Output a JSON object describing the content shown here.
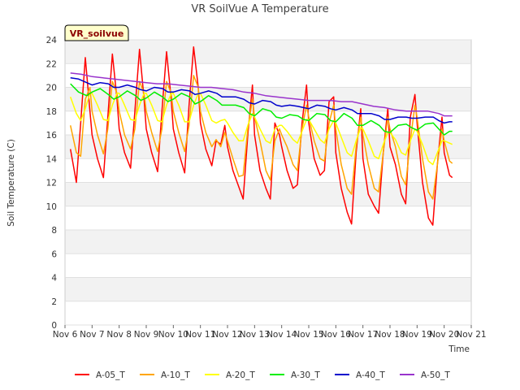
{
  "chart_data": {
    "type": "line",
    "title": "VR SoilVue A Temperature",
    "xlabel": "Time",
    "ylabel": "Soil Temperature (C)",
    "badge": "VR_soilvue",
    "xlim": [
      6,
      21
    ],
    "ylim": [
      0,
      24
    ],
    "x_ticks": [
      6,
      7,
      8,
      9,
      10,
      11,
      12,
      13,
      14,
      15,
      16,
      17,
      18,
      19,
      20,
      21
    ],
    "x_tick_labels": [
      "Nov 6",
      "Nov 7",
      "Nov 8",
      "Nov 9",
      "Nov 10",
      "Nov 11",
      "Nov 12",
      "Nov 13",
      "Nov 14",
      "Nov 15",
      "Nov 16",
      "Nov 17",
      "Nov 18",
      "Nov 19",
      "Nov 20",
      "Nov 21"
    ],
    "y_ticks": [
      0,
      2,
      4,
      6,
      8,
      10,
      12,
      14,
      16,
      18,
      20,
      22,
      24
    ],
    "y_tick_labels": [
      "0",
      "2",
      "4",
      "6",
      "8",
      "10",
      "12",
      "14",
      "16",
      "18",
      "20",
      "22",
      "24"
    ],
    "legend_position": "bottom-center",
    "grid": true,
    "series": [
      {
        "name": "A-05_T",
        "color": "#ff0000",
        "x": [
          6.2,
          6.42,
          6.58,
          6.75,
          6.92,
          7.0,
          7.2,
          7.42,
          7.58,
          7.75,
          7.92,
          8.0,
          8.2,
          8.42,
          8.58,
          8.75,
          8.92,
          9.0,
          9.2,
          9.42,
          9.58,
          9.75,
          9.92,
          10.0,
          10.2,
          10.42,
          10.58,
          10.75,
          10.92,
          11.0,
          11.2,
          11.42,
          11.58,
          11.75,
          11.9,
          12.0,
          12.2,
          12.42,
          12.58,
          12.75,
          12.92,
          13.0,
          13.2,
          13.42,
          13.58,
          13.75,
          13.92,
          14.0,
          14.2,
          14.42,
          14.58,
          14.75,
          14.92,
          15.0,
          15.2,
          15.42,
          15.58,
          15.75,
          15.92,
          16.0,
          16.2,
          16.42,
          16.58,
          16.75,
          16.92,
          17.0,
          17.2,
          17.42,
          17.58,
          17.75,
          17.92,
          18.0,
          18.2,
          18.42,
          18.58,
          18.75,
          18.92,
          19.0,
          19.2,
          19.42,
          19.58,
          19.75,
          19.92,
          20.0,
          20.2,
          20.3
        ],
        "values": [
          14.8,
          12.0,
          17.0,
          22.5,
          18.0,
          16.0,
          14.0,
          12.4,
          17.5,
          22.8,
          19.0,
          16.5,
          14.5,
          13.2,
          18.0,
          23.2,
          19.0,
          16.5,
          14.5,
          12.9,
          18.0,
          23.0,
          19.0,
          16.5,
          14.5,
          12.8,
          18.5,
          23.4,
          20.0,
          17.0,
          14.8,
          13.4,
          15.5,
          15.2,
          16.8,
          15.0,
          13.0,
          11.6,
          10.6,
          16.0,
          20.2,
          16.0,
          13.0,
          11.5,
          10.6,
          17.0,
          16.0,
          15.0,
          13.0,
          11.5,
          11.8,
          17.0,
          20.2,
          17.0,
          14.0,
          12.6,
          13.0,
          18.8,
          19.2,
          14.5,
          11.5,
          9.5,
          8.5,
          14.5,
          18.2,
          14.0,
          11.0,
          10.0,
          9.4,
          14.5,
          18.2,
          15.0,
          13.5,
          11.0,
          10.2,
          17.5,
          19.4,
          17.0,
          12.0,
          9.0,
          8.4,
          13.5,
          17.5,
          14.5,
          12.6,
          12.4
        ]
      },
      {
        "name": "A-10_T",
        "color": "#ffa500",
        "x": [
          6.2,
          6.42,
          6.58,
          6.75,
          6.92,
          7.0,
          7.2,
          7.42,
          7.58,
          7.75,
          7.92,
          8.0,
          8.2,
          8.42,
          8.58,
          8.75,
          8.92,
          9.0,
          9.2,
          9.42,
          9.58,
          9.75,
          9.92,
          10.0,
          10.2,
          10.42,
          10.58,
          10.75,
          10.92,
          11.0,
          11.2,
          11.42,
          11.58,
          11.75,
          11.9,
          12.0,
          12.2,
          12.42,
          12.58,
          12.75,
          12.92,
          13.0,
          13.2,
          13.42,
          13.58,
          13.75,
          13.92,
          14.0,
          14.2,
          14.42,
          14.58,
          14.75,
          14.92,
          15.0,
          15.2,
          15.42,
          15.58,
          15.75,
          15.92,
          16.0,
          16.2,
          16.42,
          16.58,
          16.75,
          16.92,
          17.0,
          17.2,
          17.42,
          17.58,
          17.75,
          17.92,
          18.0,
          18.2,
          18.42,
          18.58,
          18.75,
          18.92,
          19.0,
          19.2,
          19.42,
          19.58,
          19.75,
          19.92,
          20.0,
          20.2,
          20.3
        ],
        "values": [
          16.8,
          14.5,
          14.2,
          19.0,
          20.0,
          18.0,
          16.0,
          14.4,
          16.5,
          20.5,
          19.5,
          18.0,
          16.0,
          14.8,
          16.5,
          20.5,
          19.5,
          18.0,
          16.2,
          14.6,
          16.5,
          20.5,
          19.5,
          18.0,
          16.2,
          14.6,
          16.8,
          21.0,
          20.0,
          18.0,
          16.2,
          15.0,
          15.6,
          15.0,
          16.2,
          15.5,
          14.0,
          12.5,
          12.6,
          16.5,
          19.0,
          17.5,
          15.5,
          13.0,
          12.2,
          15.5,
          16.5,
          16.0,
          15.0,
          13.5,
          13.0,
          16.5,
          18.5,
          17.5,
          15.5,
          14.0,
          13.8,
          17.0,
          18.5,
          16.5,
          13.5,
          11.5,
          11.0,
          15.0,
          17.5,
          16.0,
          13.5,
          11.5,
          11.2,
          14.5,
          17.5,
          16.5,
          15.0,
          12.5,
          11.8,
          15.5,
          18.5,
          17.5,
          14.0,
          11.2,
          10.6,
          13.5,
          16.5,
          15.5,
          13.8,
          13.6
        ]
      },
      {
        "name": "A-20_T",
        "color": "#ffff00",
        "x": [
          6.2,
          6.42,
          6.58,
          6.75,
          6.92,
          7.0,
          7.2,
          7.42,
          7.58,
          7.75,
          7.92,
          8.0,
          8.2,
          8.42,
          8.58,
          8.75,
          8.92,
          9.0,
          9.2,
          9.42,
          9.58,
          9.75,
          9.92,
          10.0,
          10.2,
          10.42,
          10.58,
          10.75,
          10.92,
          11.0,
          11.2,
          11.42,
          11.58,
          11.75,
          11.9,
          12.0,
          12.2,
          12.42,
          12.58,
          12.75,
          12.92,
          13.0,
          13.2,
          13.42,
          13.58,
          13.75,
          13.92,
          14.0,
          14.2,
          14.42,
          14.58,
          14.75,
          14.92,
          15.0,
          15.2,
          15.42,
          15.58,
          15.75,
          15.92,
          16.0,
          16.2,
          16.42,
          16.58,
          16.75,
          16.92,
          17.0,
          17.2,
          17.42,
          17.58,
          17.75,
          17.92,
          18.0,
          18.2,
          18.42,
          18.58,
          18.75,
          18.92,
          19.0,
          19.2,
          19.42,
          19.58,
          19.75,
          19.92,
          20.0,
          20.2,
          20.3
        ],
        "values": [
          19.2,
          17.8,
          17.2,
          18.2,
          19.5,
          19.5,
          18.5,
          17.3,
          17.2,
          18.5,
          19.5,
          19.5,
          18.5,
          17.3,
          17.2,
          18.5,
          19.5,
          19.5,
          18.5,
          17.2,
          17.1,
          18.5,
          19.5,
          19.5,
          18.5,
          17.1,
          17.1,
          18.5,
          19.5,
          19.5,
          18.5,
          17.2,
          17.0,
          17.2,
          17.3,
          17.0,
          16.2,
          15.5,
          15.5,
          16.8,
          17.8,
          17.5,
          16.5,
          15.5,
          15.3,
          16.5,
          16.8,
          16.8,
          16.3,
          15.6,
          15.3,
          16.3,
          17.3,
          17.3,
          16.5,
          15.6,
          15.3,
          16.5,
          17.2,
          17.0,
          15.8,
          14.5,
          14.2,
          15.5,
          16.6,
          16.5,
          15.5,
          14.2,
          14.0,
          15.2,
          16.2,
          16.2,
          15.6,
          14.5,
          14.3,
          15.5,
          16.5,
          16.3,
          15.2,
          13.8,
          13.5,
          14.5,
          15.5,
          15.5,
          15.3,
          15.2
        ]
      },
      {
        "name": "A-30_T",
        "color": "#00ee00",
        "x": [
          6.2,
          6.5,
          6.8,
          7.0,
          7.3,
          7.6,
          7.8,
          8.0,
          8.3,
          8.6,
          8.8,
          9.0,
          9.3,
          9.6,
          9.8,
          10.0,
          10.3,
          10.6,
          10.8,
          11.0,
          11.3,
          11.6,
          11.8,
          12.0,
          12.3,
          12.6,
          12.8,
          13.0,
          13.3,
          13.6,
          13.8,
          14.0,
          14.3,
          14.6,
          14.8,
          15.0,
          15.3,
          15.6,
          15.8,
          16.0,
          16.3,
          16.6,
          16.8,
          17.0,
          17.3,
          17.6,
          17.8,
          18.0,
          18.3,
          18.6,
          18.8,
          19.0,
          19.3,
          19.6,
          19.8,
          20.0,
          20.2,
          20.3
        ],
        "values": [
          20.3,
          19.6,
          19.3,
          19.6,
          19.9,
          19.4,
          19.0,
          19.2,
          19.7,
          19.3,
          18.9,
          19.1,
          19.6,
          19.2,
          18.8,
          19.0,
          19.5,
          19.2,
          18.6,
          18.8,
          19.3,
          18.9,
          18.5,
          18.5,
          18.5,
          18.3,
          17.8,
          17.6,
          18.2,
          18.0,
          17.5,
          17.4,
          17.7,
          17.6,
          17.3,
          17.2,
          17.8,
          17.7,
          17.2,
          17.1,
          17.8,
          17.4,
          16.8,
          16.8,
          17.2,
          16.8,
          16.3,
          16.2,
          16.8,
          16.9,
          16.6,
          16.4,
          16.9,
          17.0,
          16.5,
          16.0,
          16.3,
          16.3
        ]
      },
      {
        "name": "A-40_T",
        "color": "#0000cc",
        "x": [
          6.2,
          6.5,
          6.8,
          7.0,
          7.3,
          7.6,
          7.8,
          8.0,
          8.3,
          8.6,
          8.8,
          9.0,
          9.3,
          9.6,
          9.8,
          10.0,
          10.3,
          10.6,
          10.8,
          11.0,
          11.3,
          11.6,
          11.8,
          12.0,
          12.3,
          12.6,
          12.8,
          13.0,
          13.3,
          13.6,
          13.8,
          14.0,
          14.3,
          14.6,
          14.8,
          15.0,
          15.3,
          15.6,
          15.8,
          16.0,
          16.3,
          16.6,
          16.8,
          17.0,
          17.3,
          17.6,
          17.8,
          18.0,
          18.3,
          18.6,
          18.8,
          19.0,
          19.3,
          19.6,
          19.8,
          20.0,
          20.2,
          20.3
        ],
        "values": [
          20.8,
          20.7,
          20.4,
          20.2,
          20.4,
          20.3,
          20.0,
          20.0,
          20.2,
          20.0,
          19.8,
          19.7,
          20.0,
          19.9,
          19.6,
          19.6,
          19.8,
          19.7,
          19.4,
          19.5,
          19.7,
          19.5,
          19.2,
          19.2,
          19.2,
          19.0,
          18.7,
          18.6,
          18.9,
          18.8,
          18.5,
          18.4,
          18.5,
          18.4,
          18.3,
          18.2,
          18.5,
          18.4,
          18.2,
          18.1,
          18.3,
          18.1,
          17.8,
          17.8,
          17.8,
          17.6,
          17.3,
          17.3,
          17.5,
          17.5,
          17.4,
          17.4,
          17.5,
          17.5,
          17.2,
          17.0,
          17.1,
          17.1
        ]
      },
      {
        "name": "A-50_T",
        "color": "#9933cc",
        "x": [
          6.2,
          6.6,
          7.0,
          7.4,
          7.8,
          8.2,
          8.6,
          9.0,
          9.4,
          9.8,
          10.2,
          10.6,
          11.0,
          11.4,
          11.8,
          12.2,
          12.6,
          13.0,
          13.4,
          13.8,
          14.2,
          14.6,
          15.0,
          15.4,
          15.8,
          16.2,
          16.6,
          17.0,
          17.4,
          17.8,
          18.2,
          18.6,
          19.0,
          19.4,
          19.8,
          20.0,
          20.3
        ],
        "values": [
          21.2,
          21.1,
          20.9,
          20.8,
          20.7,
          20.6,
          20.5,
          20.4,
          20.3,
          20.3,
          20.2,
          20.1,
          20.0,
          20.0,
          19.9,
          19.8,
          19.6,
          19.5,
          19.3,
          19.2,
          19.1,
          19.0,
          18.9,
          18.9,
          18.9,
          18.8,
          18.8,
          18.6,
          18.4,
          18.3,
          18.1,
          18.0,
          18.0,
          18.0,
          17.8,
          17.6,
          17.6
        ]
      }
    ]
  }
}
